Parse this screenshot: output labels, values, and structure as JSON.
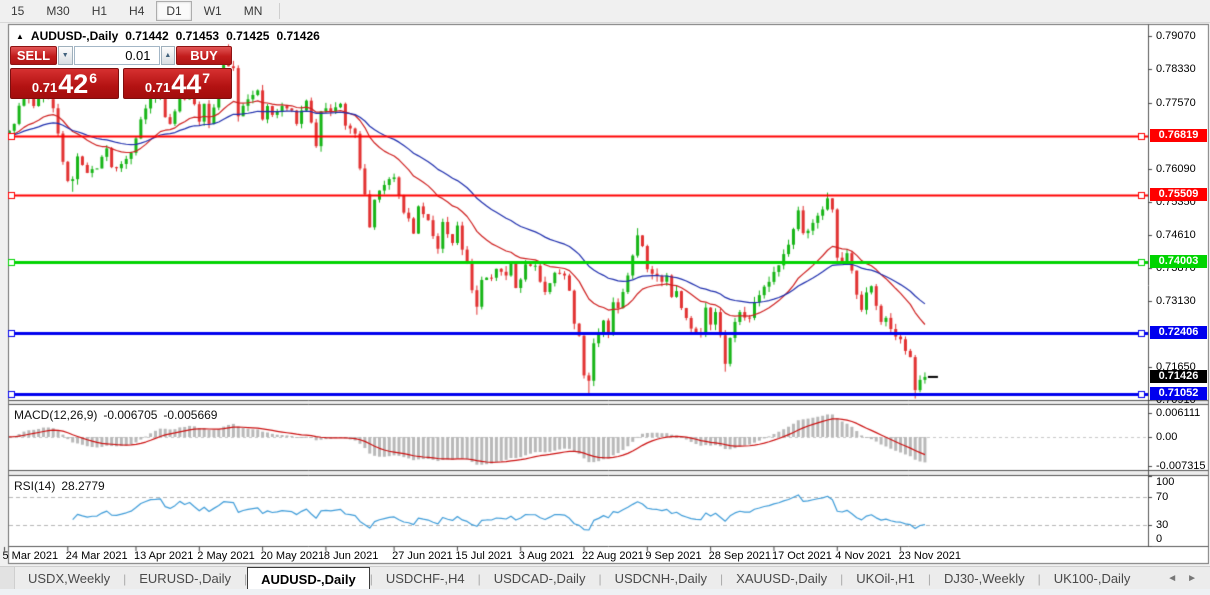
{
  "toolbar": {
    "timeframes": [
      "15",
      "M30",
      "H1",
      "H4",
      "D1",
      "W1",
      "MN"
    ],
    "active_timeframe": "D1"
  },
  "header": {
    "title": "AUDUSD-,Daily",
    "open": "0.71442",
    "high": "0.71453",
    "low": "0.71425",
    "close": "0.71426"
  },
  "one_click": {
    "sell_label": "SELL",
    "buy_label": "BUY",
    "volume": "0.01",
    "bid_prefix": "0.71",
    "bid_big": "42",
    "bid_sup": "6",
    "ask_prefix": "0.71",
    "ask_big": "44",
    "ask_sup": "7"
  },
  "chart_data": {
    "type": "candlestick",
    "symbol": "AUDUSD-",
    "timeframe": "Daily",
    "n_candles": 190,
    "candle_up_color": "#17b517",
    "candle_down_color": "#e23232",
    "close_path_anchors": [
      [
        0,
        0.7684
      ],
      [
        2,
        0.771
      ],
      [
        4,
        0.7785
      ],
      [
        6,
        0.775
      ],
      [
        8,
        0.7795
      ],
      [
        10,
        0.7745
      ],
      [
        12,
        0.7625
      ],
      [
        13,
        0.7582
      ],
      [
        14,
        0.7586
      ],
      [
        15,
        0.7637
      ],
      [
        17,
        0.76
      ],
      [
        19,
        0.761
      ],
      [
        21,
        0.7655
      ],
      [
        22,
        0.7613
      ],
      [
        24,
        0.762
      ],
      [
        26,
        0.7645
      ],
      [
        28,
        0.772
      ],
      [
        30,
        0.777
      ],
      [
        32,
        0.778
      ],
      [
        33,
        0.7725
      ],
      [
        34,
        0.771
      ],
      [
        35,
        0.7738
      ],
      [
        36,
        0.779
      ],
      [
        37,
        0.7765
      ],
      [
        38,
        0.779
      ],
      [
        40,
        0.7715
      ],
      [
        41,
        0.7755
      ],
      [
        42,
        0.771
      ],
      [
        44,
        0.7785
      ],
      [
        45,
        0.7843
      ],
      [
        47,
        0.7835
      ],
      [
        48,
        0.7727
      ],
      [
        50,
        0.7765
      ],
      [
        52,
        0.7785
      ],
      [
        53,
        0.772
      ],
      [
        54,
        0.775
      ],
      [
        55,
        0.773
      ],
      [
        57,
        0.775
      ],
      [
        59,
        0.774
      ],
      [
        60,
        0.771
      ],
      [
        62,
        0.7762
      ],
      [
        64,
        0.766
      ],
      [
        65,
        0.7738
      ],
      [
        67,
        0.7738
      ],
      [
        69,
        0.7755
      ],
      [
        70,
        0.7706
      ],
      [
        72,
        0.7688
      ],
      [
        73,
        0.761
      ],
      [
        74,
        0.7552
      ],
      [
        75,
        0.7478
      ],
      [
        76,
        0.754
      ],
      [
        78,
        0.7573
      ],
      [
        80,
        0.759
      ],
      [
        82,
        0.7511
      ],
      [
        83,
        0.7498
      ],
      [
        84,
        0.7464
      ],
      [
        85,
        0.7525
      ],
      [
        87,
        0.7494
      ],
      [
        89,
        0.743
      ],
      [
        90,
        0.749
      ],
      [
        92,
        0.7443
      ],
      [
        93,
        0.7482
      ],
      [
        94,
        0.7428
      ],
      [
        95,
        0.7402
      ],
      [
        96,
        0.7337
      ],
      [
        97,
        0.73
      ],
      [
        98,
        0.736
      ],
      [
        100,
        0.7365
      ],
      [
        101,
        0.7385
      ],
      [
        103,
        0.737
      ],
      [
        104,
        0.7396
      ],
      [
        105,
        0.7342
      ],
      [
        106,
        0.7361
      ],
      [
        107,
        0.7395
      ],
      [
        109,
        0.7392
      ],
      [
        110,
        0.7356
      ],
      [
        111,
        0.7333
      ],
      [
        113,
        0.7376
      ],
      [
        115,
        0.737
      ],
      [
        116,
        0.7336
      ],
      [
        117,
        0.7262
      ],
      [
        118,
        0.7235
      ],
      [
        119,
        0.7146
      ],
      [
        120,
        0.7134
      ],
      [
        121,
        0.7218
      ],
      [
        123,
        0.7269
      ],
      [
        124,
        0.7237
      ],
      [
        125,
        0.731
      ],
      [
        126,
        0.7297
      ],
      [
        128,
        0.737
      ],
      [
        130,
        0.746
      ],
      [
        131,
        0.7436
      ],
      [
        132,
        0.7384
      ],
      [
        134,
        0.7369
      ],
      [
        135,
        0.7356
      ],
      [
        136,
        0.737
      ],
      [
        137,
        0.7322
      ],
      [
        138,
        0.7335
      ],
      [
        139,
        0.7297
      ],
      [
        141,
        0.7251
      ],
      [
        143,
        0.7237
      ],
      [
        144,
        0.7298
      ],
      [
        145,
        0.726
      ],
      [
        146,
        0.7288
      ],
      [
        147,
        0.7236
      ],
      [
        148,
        0.7172
      ],
      [
        149,
        0.723
      ],
      [
        151,
        0.7288
      ],
      [
        153,
        0.7275
      ],
      [
        154,
        0.731
      ],
      [
        156,
        0.7345
      ],
      [
        158,
        0.7378
      ],
      [
        160,
        0.7418
      ],
      [
        162,
        0.7474
      ],
      [
        163,
        0.7516
      ],
      [
        164,
        0.7465
      ],
      [
        166,
        0.7488
      ],
      [
        168,
        0.7518
      ],
      [
        169,
        0.7543
      ],
      [
        170,
        0.7518
      ],
      [
        171,
        0.741
      ],
      [
        172,
        0.7401
      ],
      [
        173,
        0.742
      ],
      [
        174,
        0.7381
      ],
      [
        175,
        0.7327
      ],
      [
        176,
        0.7293
      ],
      [
        177,
        0.7332
      ],
      [
        178,
        0.7346
      ],
      [
        179,
        0.7302
      ],
      [
        180,
        0.7266
      ],
      [
        181,
        0.7275
      ],
      [
        182,
        0.725
      ],
      [
        183,
        0.7233
      ],
      [
        184,
        0.7227
      ],
      [
        185,
        0.7201
      ],
      [
        186,
        0.7187
      ],
      [
        187,
        0.7113
      ],
      [
        188,
        0.7136
      ],
      [
        189,
        0.71426
      ]
    ],
    "high_boost": {
      "46": 0.0045,
      "130": 0.0016,
      "169": 0.001
    },
    "low_boost": {
      "14": 0.002,
      "97": 0.001,
      "120": 0.0026,
      "148": 0.0006,
      "187": 0.001
    },
    "moving_averages": [
      {
        "period": 20,
        "color": "#cf2020"
      },
      {
        "period": 40,
        "color": "#1f2fae"
      }
    ],
    "levels": [
      {
        "price": 0.76819,
        "text": "0.76819",
        "color": "#ff0000",
        "width": 2
      },
      {
        "price": 0.75509,
        "text": "0.75509",
        "color": "#ff0000",
        "width": 2
      },
      {
        "price": 0.74003,
        "text": "0.74003",
        "color": "#00d400",
        "width": 3
      },
      {
        "price": 0.72406,
        "text": "0.72406",
        "color": "#0000ee",
        "width": 3
      },
      {
        "price": 0.71052,
        "text": "0.71052",
        "color": "#0000ee",
        "width": 3
      }
    ],
    "current_price": {
      "value": 0.71426,
      "text": "0.71426",
      "label_bg": "#000000"
    },
    "price_axis": {
      "min": 0.7091,
      "max": 0.7907,
      "ticks": [
        "0.79070",
        "0.78330",
        "0.77570",
        "0.76090",
        "0.75350",
        "0.74610",
        "0.73870",
        "0.73130",
        "0.71650",
        "0.70910"
      ]
    },
    "x_axis": {
      "tick_indices": [
        0,
        13,
        27,
        40,
        53,
        66,
        80,
        93,
        106,
        119,
        132,
        145,
        158,
        171,
        184
      ],
      "tick_labels": [
        "5 Mar 2021",
        "24 Mar 2021",
        "13 Apr 2021",
        "2 May 2021",
        "20 May 2021",
        "8 Jun 2021",
        "27 Jun 2021",
        "15 Jul 2021",
        "3 Aug 2021",
        "22 Aug 2021",
        "9 Sep 2021",
        "28 Sep 2021",
        "17 Oct 2021",
        "4 Nov 2021",
        "23 Nov 2021"
      ]
    },
    "macd": {
      "label": "MACD(12,26,9)",
      "fast": 12,
      "slow": 26,
      "signal_period": 9,
      "value_text": "-0.006705",
      "signal_text": "-0.005669",
      "scale_ticks": [
        "0.006111",
        "0.00",
        "-0.007315"
      ],
      "hist_color": "#b9b9b9",
      "signal_color": "#cc1111"
    },
    "rsi": {
      "label": "RSI(14)",
      "period": 14,
      "value_text": "28.2779",
      "scale_ticks": [
        "100",
        "70",
        "30",
        "0"
      ],
      "guide_levels": [
        70,
        30
      ],
      "color": "#3e9cd9"
    }
  },
  "tabs": {
    "items": [
      "USDX,Weekly",
      "EURUSD-,Daily",
      "AUDUSD-,Daily",
      "USDCHF-,H4",
      "USDCAD-,Daily",
      "USDCNH-,Daily",
      "XAUUSD-,Daily",
      "UKOil-,H1",
      "DJ30-,Weekly",
      "UK100-,Daily"
    ],
    "active": "AUDUSD-,Daily",
    "scroll_left": "◄",
    "scroll_right": "►"
  }
}
